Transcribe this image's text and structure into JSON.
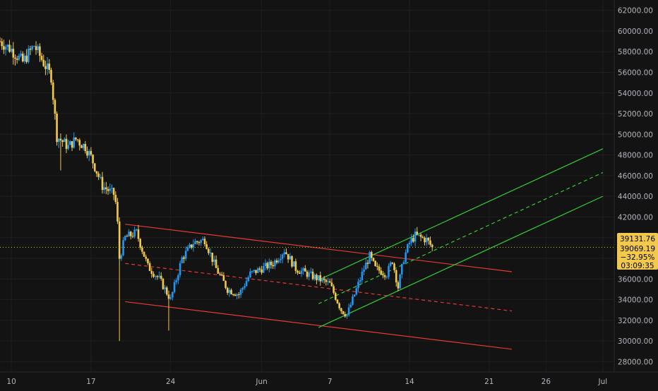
{
  "chart_data": {
    "type": "candlestick",
    "title": "",
    "xlabel": "",
    "ylabel": "",
    "ylim": [
      27000,
      63000
    ],
    "y_ticks": [
      28000,
      30000,
      32000,
      34000,
      36000,
      38000,
      40000,
      42000,
      44000,
      46000,
      48000,
      50000,
      52000,
      54000,
      56000,
      58000,
      60000,
      62000
    ],
    "y_tick_labels": [
      "28000.00",
      "30000.00",
      "32000.00",
      "34000.00",
      "36000.00",
      "38000.00",
      "40000.00",
      "42000.00",
      "44000.00",
      "46000.00",
      "48000.00",
      "50000.00",
      "52000.00",
      "54000.00",
      "56000.00",
      "58000.00",
      "60000.00",
      "62000.00"
    ],
    "x_range": [
      "2021-05-09",
      "2021-07-02"
    ],
    "x_ticks": [
      "2021-05-10",
      "2021-05-17",
      "2021-05-24",
      "2021-06-01",
      "2021-06-07",
      "2021-06-14",
      "2021-06-21",
      "2021-06-26",
      "2021-07-01"
    ],
    "x_tick_labels": [
      "10",
      "17",
      "24",
      "Jun",
      "7",
      "14",
      "21",
      "26",
      "Jul"
    ],
    "grid": true,
    "colors": {
      "background": "#131313",
      "grid": "#1f1f1f",
      "up_candle": "#2196f3",
      "down_candle": "#f2c94c",
      "descending_channel": "#e53935",
      "ascending_channel": "#33cc33",
      "price_line": "#c9c900",
      "label_background": "#f2c94c",
      "axis_text": "#b2b5be"
    },
    "current_price": 39069.19,
    "price_labels": {
      "marker_price": "39131.76",
      "last_price": "39069.19",
      "change": "−32.95%",
      "countdown": "03:09:35"
    },
    "series": [
      {
        "name": "",
        "kind": "candles",
        "interval": "4h",
        "anchors": [
          {
            "date": "2021-05-09",
            "price": 59000
          },
          {
            "date": "2021-05-10",
            "price": 58200
          },
          {
            "date": "2021-05-11",
            "price": 57000
          },
          {
            "date": "2021-05-12",
            "price": 58600
          },
          {
            "date": "2021-05-13",
            "price": 56600
          },
          {
            "date": "2021-05-13T12:00",
            "price": 55600
          },
          {
            "date": "2021-05-14",
            "price": 49800
          },
          {
            "date": "2021-05-15",
            "price": 48800
          },
          {
            "date": "2021-05-15T18:00",
            "price": 49600
          },
          {
            "date": "2021-05-16",
            "price": 49200
          },
          {
            "date": "2021-05-16T12:00",
            "price": 48800
          },
          {
            "date": "2021-05-17",
            "price": 47800
          },
          {
            "date": "2021-05-18",
            "price": 45000
          },
          {
            "date": "2021-05-19",
            "price": 44200
          },
          {
            "date": "2021-05-19T06:00",
            "price": 43000
          },
          {
            "date": "2021-05-19T12:00",
            "price": 38000
          },
          {
            "date": "2021-05-20",
            "price": 40000
          },
          {
            "date": "2021-05-21",
            "price": 40500
          },
          {
            "date": "2021-05-22",
            "price": 37200
          },
          {
            "date": "2021-05-23",
            "price": 36000
          },
          {
            "date": "2021-05-24",
            "price": 34000
          },
          {
            "date": "2021-05-25",
            "price": 38000
          },
          {
            "date": "2021-05-26",
            "price": 39500
          },
          {
            "date": "2021-05-27",
            "price": 39800
          },
          {
            "date": "2021-05-28",
            "price": 37000
          },
          {
            "date": "2021-05-29",
            "price": 35000
          },
          {
            "date": "2021-05-30",
            "price": 34500
          },
          {
            "date": "2021-05-31",
            "price": 36500
          },
          {
            "date": "2021-06-01",
            "price": 37000
          },
          {
            "date": "2021-06-02",
            "price": 37500
          },
          {
            "date": "2021-06-03",
            "price": 38800
          },
          {
            "date": "2021-06-04",
            "price": 37000
          },
          {
            "date": "2021-06-05",
            "price": 36500
          },
          {
            "date": "2021-06-06",
            "price": 36000
          },
          {
            "date": "2021-06-07",
            "price": 35500
          },
          {
            "date": "2021-06-08",
            "price": 33000
          },
          {
            "date": "2021-06-08T12:00",
            "price": 32500
          },
          {
            "date": "2021-06-09",
            "price": 34000
          },
          {
            "date": "2021-06-10",
            "price": 37000
          },
          {
            "date": "2021-06-10T12:00",
            "price": 38200
          },
          {
            "date": "2021-06-11",
            "price": 37000
          },
          {
            "date": "2021-06-12",
            "price": 36500
          },
          {
            "date": "2021-06-12T12:00",
            "price": 37800
          },
          {
            "date": "2021-06-13",
            "price": 35200
          },
          {
            "date": "2021-06-13T12:00",
            "price": 38000
          },
          {
            "date": "2021-06-14",
            "price": 39500
          },
          {
            "date": "2021-06-14T12:00",
            "price": 40200
          },
          {
            "date": "2021-06-15",
            "price": 40000
          },
          {
            "date": "2021-06-15T12:00",
            "price": 39800
          },
          {
            "date": "2021-06-16",
            "price": 39069
          }
        ],
        "wicks": [
          {
            "date": "2021-05-19T12:00",
            "low": 30000
          },
          {
            "date": "2021-05-23T18:00",
            "low": 31000
          },
          {
            "date": "2021-05-14T06:00",
            "low": 46500
          }
        ]
      },
      {
        "name": "",
        "kind": "line",
        "style": "solid",
        "color": "#e53935",
        "points": [
          {
            "date": "2021-05-20",
            "price": 41300
          },
          {
            "date": "2021-06-23",
            "price": 36700
          }
        ]
      },
      {
        "name": "",
        "kind": "line",
        "style": "dashed",
        "color": "#e53935",
        "points": [
          {
            "date": "2021-05-20",
            "price": 37500
          },
          {
            "date": "2021-06-23",
            "price": 32900
          }
        ]
      },
      {
        "name": "",
        "kind": "line",
        "style": "solid",
        "color": "#e53935",
        "points": [
          {
            "date": "2021-05-20",
            "price": 33800
          },
          {
            "date": "2021-06-23",
            "price": 29200
          }
        ]
      },
      {
        "name": "",
        "kind": "line",
        "style": "solid",
        "color": "#33cc33",
        "points": [
          {
            "date": "2021-06-06",
            "price": 35900
          },
          {
            "date": "2021-07-01",
            "price": 48600
          }
        ]
      },
      {
        "name": "",
        "kind": "line",
        "style": "dashed",
        "color": "#33cc33",
        "points": [
          {
            "date": "2021-06-06",
            "price": 33600
          },
          {
            "date": "2021-07-01",
            "price": 46300
          }
        ]
      },
      {
        "name": "",
        "kind": "line",
        "style": "solid",
        "color": "#33cc33",
        "points": [
          {
            "date": "2021-06-06",
            "price": 31300
          },
          {
            "date": "2021-07-01",
            "price": 44000
          }
        ]
      }
    ]
  }
}
